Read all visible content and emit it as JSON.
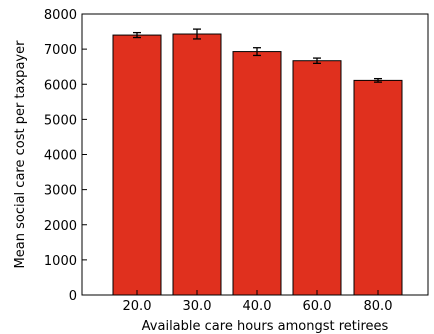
{
  "chart_data": {
    "type": "bar",
    "title": "",
    "xlabel": "Available care hours amongst retirees",
    "ylabel": "Mean social care cost per taxpayer",
    "categories": [
      "20.0",
      "30.0",
      "40.0",
      "60.0",
      "80.0"
    ],
    "values": [
      7400,
      7430,
      6930,
      6670,
      6110
    ],
    "errors": [
      70,
      140,
      110,
      75,
      50
    ],
    "ylim": [
      0,
      8000
    ],
    "yticks": [
      0,
      1000,
      2000,
      3000,
      4000,
      5000,
      6000,
      7000,
      8000
    ],
    "grid": false,
    "bar_color": "#e0301e",
    "edge_color": "#000000"
  }
}
